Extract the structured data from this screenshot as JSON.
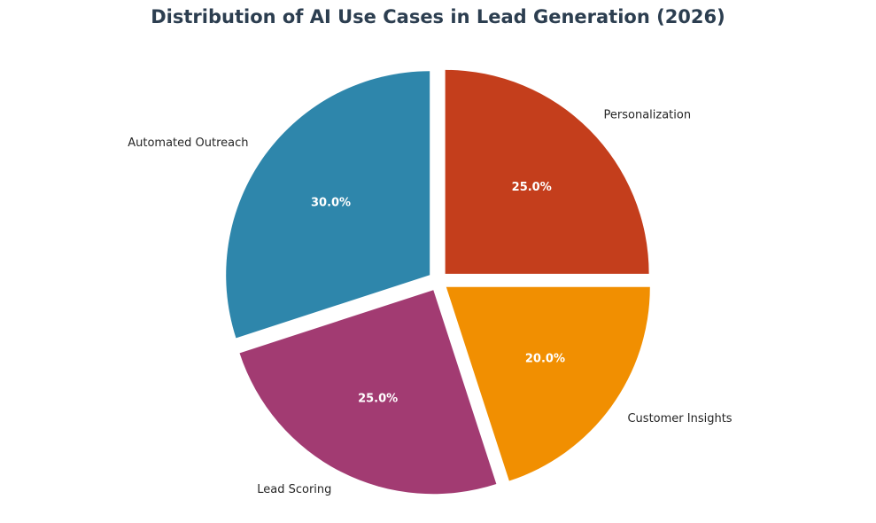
{
  "chart_data": {
    "type": "pie",
    "title": "Distribution of AI Use Cases in Lead Generation (2026)",
    "title_color": "#2C3E50",
    "start_angle_deg": 90,
    "direction": "clockwise",
    "explode": 0.05,
    "slices": [
      {
        "label": "Personalization",
        "value": 25,
        "pct_label": "25.0%",
        "color": "#C43E1C"
      },
      {
        "label": "Customer Insights",
        "value": 20,
        "pct_label": "20.0%",
        "color": "#F18F01"
      },
      {
        "label": "Lead Scoring",
        "value": 25,
        "pct_label": "25.0%",
        "color": "#A23B72"
      },
      {
        "label": "Automated Outreach",
        "value": 30,
        "pct_label": "30.0%",
        "color": "#2E86AB"
      }
    ]
  }
}
